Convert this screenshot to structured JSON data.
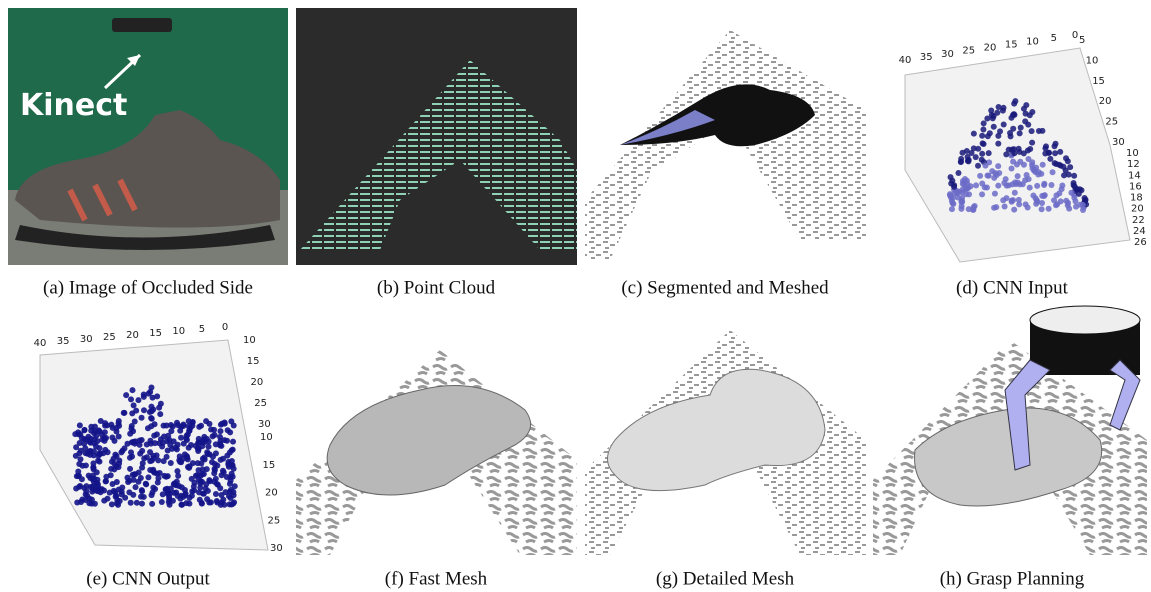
{
  "panels": [
    {
      "caption": "(a) Image of Occluded Side",
      "label": "Kinect"
    },
    {
      "caption": "(b) Point Cloud"
    },
    {
      "caption": "(c) Segmented and Meshed"
    },
    {
      "caption": "(d) CNN Input",
      "axis_top": [
        "40",
        "35",
        "30",
        "25",
        "20",
        "15",
        "10",
        "5",
        "0"
      ],
      "axis_right_upper": [
        "5",
        "10",
        "15",
        "20",
        "25",
        "30"
      ],
      "axis_right_lower": [
        "10",
        "12",
        "14",
        "16",
        "18",
        "20",
        "22",
        "24",
        "26"
      ]
    },
    {
      "caption": "(e) CNN Output",
      "axis_top": [
        "40",
        "35",
        "30",
        "25",
        "20",
        "15",
        "10",
        "5",
        "0"
      ],
      "axis_right_upper": [
        "10",
        "15",
        "20",
        "25",
        "30"
      ],
      "axis_right_lower": [
        "10",
        "15",
        "20",
        "25",
        "30"
      ]
    },
    {
      "caption": "(f) Fast Mesh"
    },
    {
      "caption": "(g) Detailed Mesh"
    },
    {
      "caption": "(h) Grasp Planning"
    }
  ]
}
